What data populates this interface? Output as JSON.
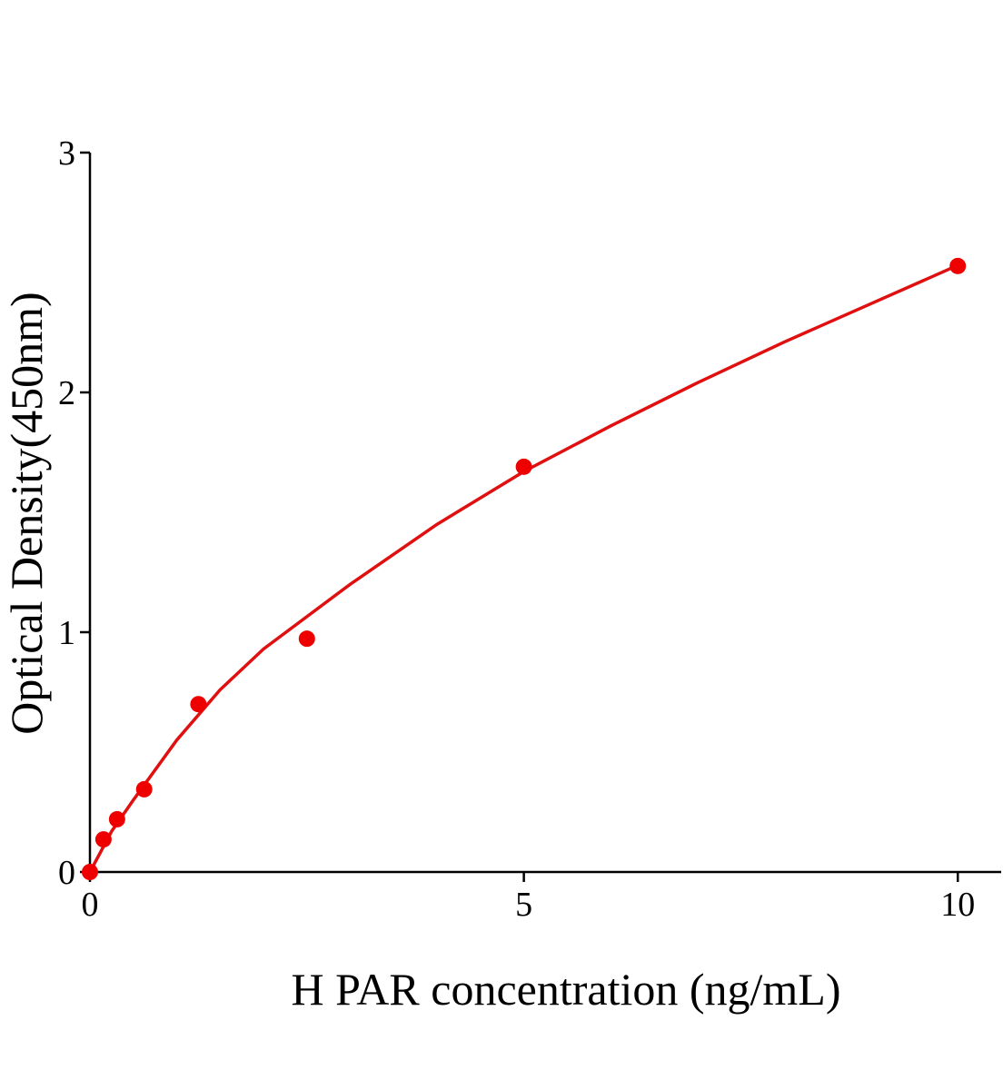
{
  "chart_data": {
    "type": "scatter",
    "x_label": "H PAR concentration (ng/mL)",
    "y_label": "Optical Density(450nm)",
    "xlim": [
      0,
      10.5
    ],
    "xticks": [
      0,
      5,
      10
    ],
    "ylim": [
      0,
      3
    ],
    "yticks": [
      0,
      1,
      2,
      3
    ],
    "series": [
      {
        "color": "#ee0000",
        "x": [
          0,
          0.156,
          0.3125,
          0.625,
          1.25,
          2.5,
          5,
          10
        ],
        "values": [
          0,
          0.136,
          0.22,
          0.345,
          0.7,
          0.973,
          1.69,
          2.527
        ]
      }
    ],
    "fit": {
      "color": "#e01010",
      "x": [
        0,
        0.25,
        0.5,
        1,
        1.5,
        2,
        3,
        4,
        5,
        6,
        7,
        8,
        9,
        10
      ],
      "values": [
        0,
        0.17,
        0.3,
        0.55,
        0.76,
        0.93,
        1.2,
        1.45,
        1.67,
        1.86,
        2.04,
        2.21,
        2.37,
        2.53
      ]
    }
  }
}
